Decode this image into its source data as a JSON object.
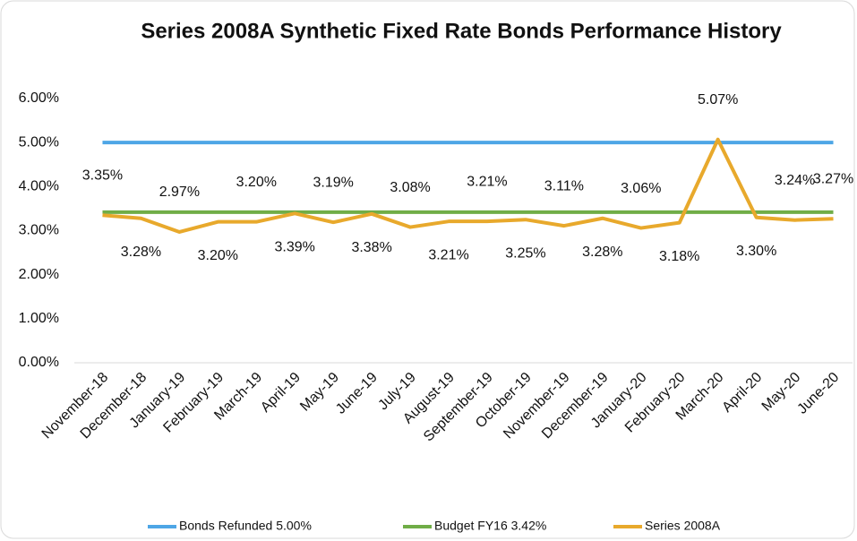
{
  "chart_data": {
    "type": "line",
    "title": "Series 2008A Synthetic Fixed Rate Bonds Performance History",
    "categories": [
      "November-18",
      "December-18",
      "January-19",
      "February-19",
      "March-19",
      "April-19",
      "May-19",
      "June-19",
      "July-19",
      "August-19",
      "September-19",
      "October-19",
      "November-19",
      "December-19",
      "January-20",
      "February-20",
      "March-20",
      "April-20",
      "May-20",
      "June-20"
    ],
    "series": [
      {
        "name": "Bonds Refunded 5.00%",
        "color": "#4ea6e6",
        "values": [
          5,
          5,
          5,
          5,
          5,
          5,
          5,
          5,
          5,
          5,
          5,
          5,
          5,
          5,
          5,
          5,
          5,
          5,
          5,
          5
        ]
      },
      {
        "name": "Budget FY16 3.42%",
        "color": "#70ad47",
        "values": [
          3.42,
          3.42,
          3.42,
          3.42,
          3.42,
          3.42,
          3.42,
          3.42,
          3.42,
          3.42,
          3.42,
          3.42,
          3.42,
          3.42,
          3.42,
          3.42,
          3.42,
          3.42,
          3.42,
          3.42
        ]
      },
      {
        "name": "Series 2008A",
        "color": "#e8a92c",
        "values": [
          3.35,
          3.28,
          2.97,
          3.2,
          3.2,
          3.39,
          3.19,
          3.38,
          3.08,
          3.21,
          3.21,
          3.25,
          3.11,
          3.28,
          3.06,
          3.18,
          5.07,
          3.3,
          3.24,
          3.27
        ],
        "value_labels": [
          "3.35%",
          "3.28%",
          "2.97%",
          "3.20%",
          "3.20%",
          "3.39%",
          "3.19%",
          "3.38%",
          "3.08%",
          "3.21%",
          "3.21%",
          "3.25%",
          "3.11%",
          "3.28%",
          "3.06%",
          "3.18%",
          "5.07%",
          "3.30%",
          "3.24%",
          "3.27%"
        ]
      }
    ],
    "ylim": [
      0,
      6
    ],
    "yticks": [
      {
        "value": 0,
        "label": "0.00%"
      },
      {
        "value": 1,
        "label": "1.00%"
      },
      {
        "value": 2,
        "label": "2.00%"
      },
      {
        "value": 3,
        "label": "3.00%"
      },
      {
        "value": 4,
        "label": "4.00%"
      },
      {
        "value": 5,
        "label": "5.00%"
      },
      {
        "value": 6,
        "label": "6.00%"
      }
    ],
    "grid": false,
    "legend": "bottom"
  }
}
